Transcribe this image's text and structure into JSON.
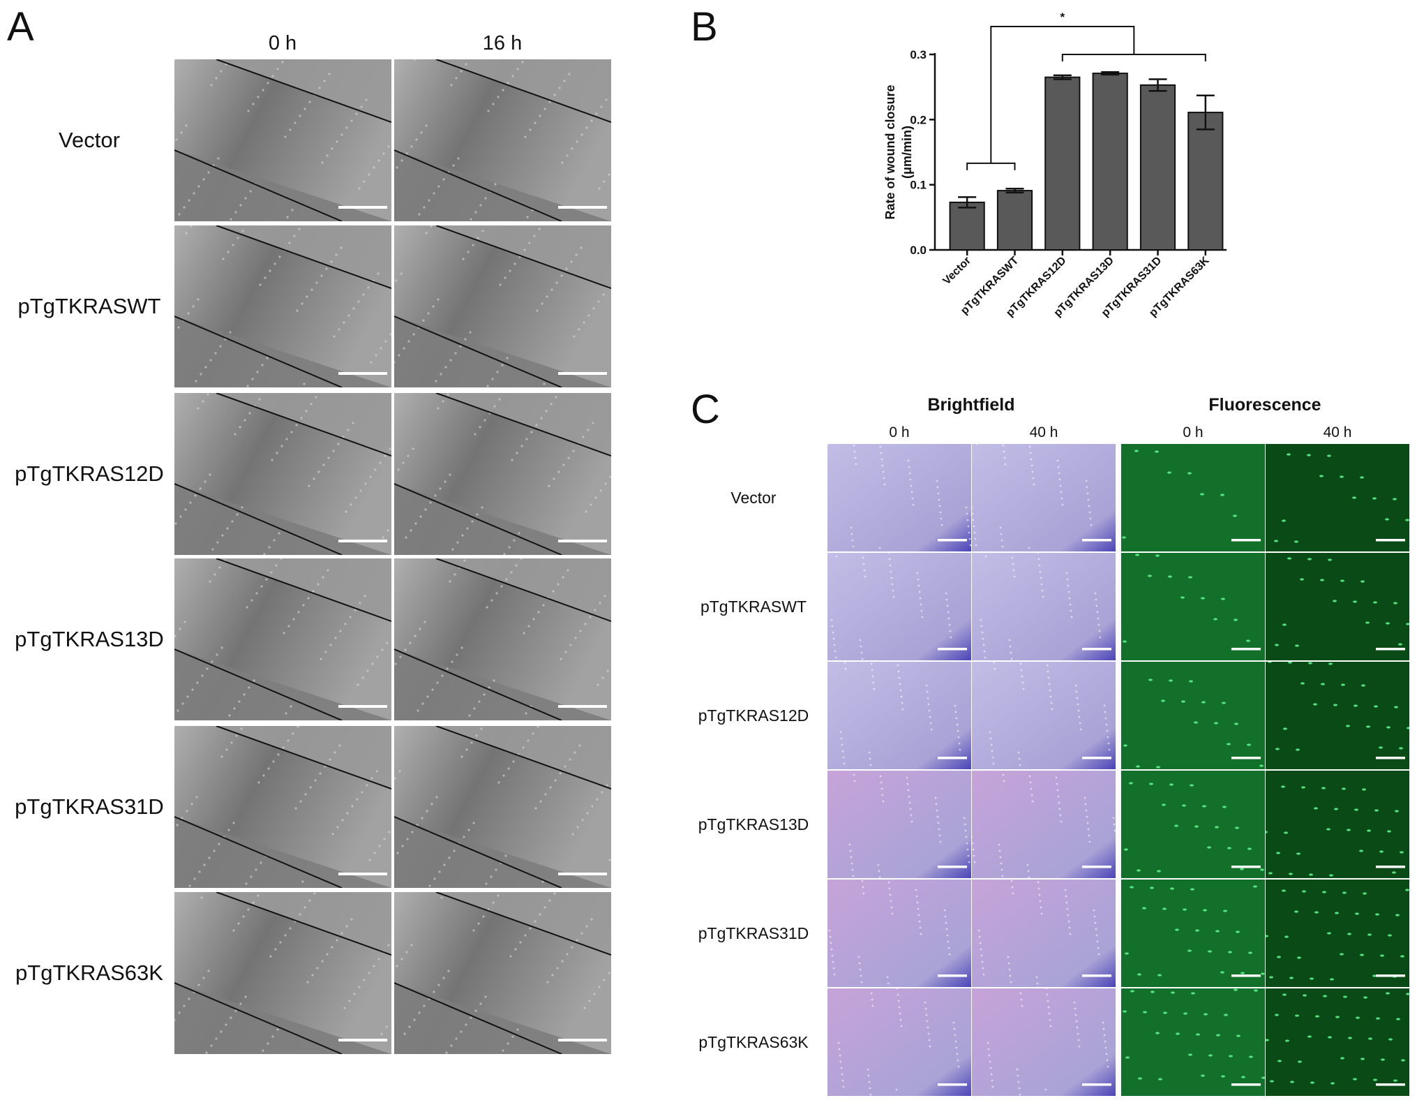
{
  "panels": {
    "a": {
      "letter": "A",
      "columns": [
        "0 h",
        "16 h"
      ],
      "rows": [
        "Vector",
        "pTgTKRASWT",
        "pTgTKRAS12D",
        "pTgTKRAS13D",
        "pTgTKRAS31D",
        "pTgTKRAS63K"
      ]
    },
    "b": {
      "letter": "B"
    },
    "c": {
      "letter": "C",
      "groups": [
        "Brightfield",
        "Fluorescence"
      ],
      "columns": [
        "0 h",
        "40 h",
        "0 h",
        "40 h"
      ],
      "rows": [
        "Vector",
        "pTgTKRASWT",
        "pTgTKRAS12D",
        "pTgTKRAS13D",
        "pTgTKRAS31D",
        "pTgTKRAS63K"
      ]
    }
  },
  "colors": {
    "bar": "#595959",
    "phase_contrast": "#8c8c8c",
    "brightfield": "#a9a3d6",
    "fluorescence": "#0c5a1c",
    "scale_bar": "#ffffff"
  },
  "chart_data": {
    "type": "bar",
    "categories": [
      "Vector",
      "pTgTKRASWT",
      "pTgTKRAS12D",
      "pTgTKRAS13D",
      "pTgTKRAS31D",
      "pTgTKRAS63K"
    ],
    "values": [
      0.073,
      0.091,
      0.265,
      0.271,
      0.253,
      0.211
    ],
    "errors": [
      0.008,
      0.003,
      0.003,
      0.002,
      0.009,
      0.026
    ],
    "ylabel": "Rate of wound closure (μm/min)",
    "ylabel_lines": [
      "Rate of wound closure",
      "(μm/min)"
    ],
    "ylim": [
      0.0,
      0.3
    ],
    "yticks": [
      "0.0",
      "0.1",
      "0.2",
      "0.3"
    ],
    "significance": "*",
    "grid": false
  }
}
